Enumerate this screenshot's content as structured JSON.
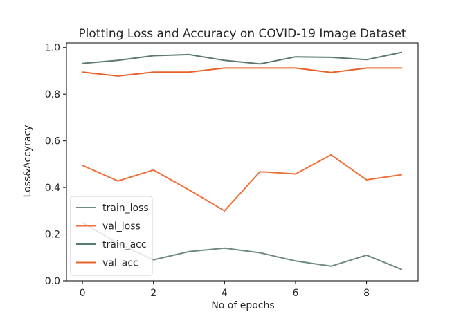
{
  "chart_data": {
    "type": "line",
    "title": "Plotting Loss and Accuracy on COVID-19 Image Dataset",
    "xlabel": "No of epochs",
    "ylabel": "Loss&Accyracy",
    "x": [
      0,
      1,
      2,
      3,
      4,
      5,
      6,
      7,
      8,
      9
    ],
    "xlim": [
      -0.45,
      9.45
    ],
    "ylim": [
      0.0,
      1.02
    ],
    "xticks": [
      "0",
      "2",
      "4",
      "6",
      "8"
    ],
    "xtick_values": [
      0,
      2,
      4,
      6,
      8
    ],
    "yticks": [
      "0.0",
      "0.2",
      "0.4",
      "0.6",
      "0.8",
      "1.0"
    ],
    "ytick_values": [
      0.0,
      0.2,
      0.4,
      0.6,
      0.8,
      1.0
    ],
    "grid": false,
    "legend_position": "lower-left",
    "series": [
      {
        "name": "train_loss",
        "color": "#6e8b7d",
        "values": [
          0.25,
          0.16,
          0.09,
          0.125,
          0.14,
          0.12,
          0.085,
          0.063,
          0.11,
          0.048
        ]
      },
      {
        "name": "val_loss",
        "color": "#f0703a",
        "values": [
          0.495,
          0.428,
          0.475,
          0.39,
          0.3,
          0.468,
          0.458,
          0.54,
          0.433,
          0.455
        ]
      },
      {
        "name": "train_acc",
        "color": "#5b7a6c",
        "values": [
          0.932,
          0.945,
          0.965,
          0.97,
          0.945,
          0.93,
          0.96,
          0.958,
          0.948,
          0.98
        ]
      },
      {
        "name": "val_acc",
        "color": "#e8612c",
        "values": [
          0.895,
          0.878,
          0.895,
          0.895,
          0.912,
          0.912,
          0.912,
          0.893,
          0.912,
          0.912
        ]
      }
    ]
  }
}
